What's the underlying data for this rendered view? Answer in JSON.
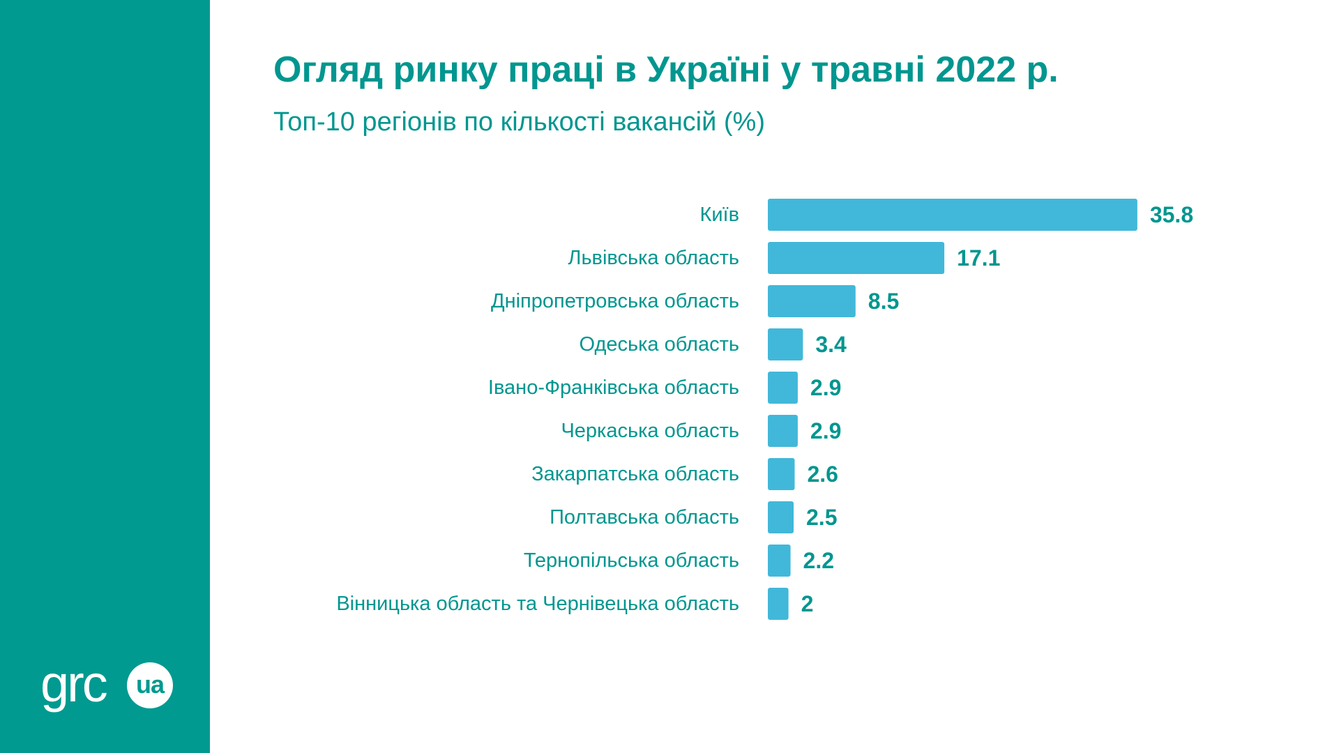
{
  "header": {
    "title": "Огляд ринку праці в Україні у травні 2022 р.",
    "subtitle": "Топ-10 регіонів по кількості вакансій (%)"
  },
  "logo": {
    "text": "grc",
    "badge": "ua"
  },
  "colors": {
    "sidebar": "#009a90",
    "text": "#00968f",
    "bar": "#41b8d9"
  },
  "chart_data": {
    "type": "bar",
    "orientation": "horizontal",
    "title": "Огляд ринку праці в Україні у травні 2022 р.",
    "subtitle": "Топ-10 регіонів по кількості вакансій (%)",
    "categories": [
      "Київ",
      "Львівська область",
      "Дніпропетровська область",
      "Одеська область",
      "Івано-Франківська область",
      "Черкаська область",
      "Закарпатська область",
      "Полтавська область",
      "Тернопільська область",
      "Вінницька область та Чернівецька область"
    ],
    "values": [
      35.8,
      17.1,
      8.5,
      3.4,
      2.9,
      2.9,
      2.6,
      2.5,
      2.2,
      2
    ],
    "data_labels": [
      "35.8",
      "17.1",
      "8.5",
      "3.4",
      "2.9",
      "2.9",
      "2.6",
      "2.5",
      "2.2",
      "2"
    ],
    "xlabel": "",
    "ylabel": "",
    "grid": false,
    "legend": "none"
  }
}
